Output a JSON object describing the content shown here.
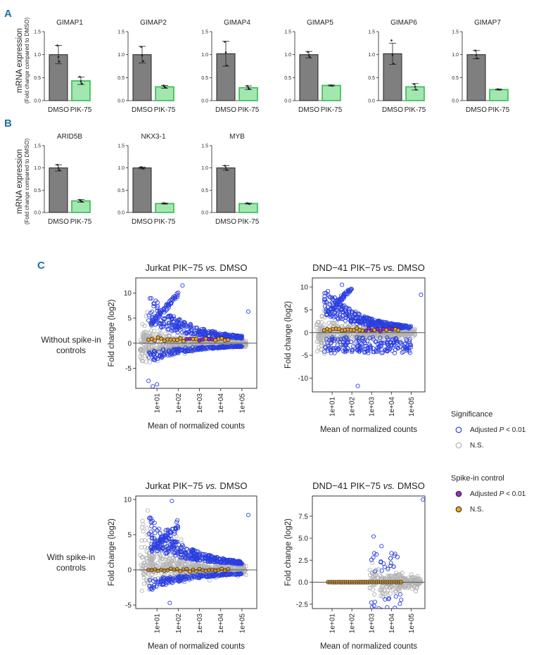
{
  "panels": {
    "a": "A",
    "b": "B",
    "c": "C"
  },
  "bar_ylabel": {
    "line1": "mRNA expression",
    "line2": "(Fold change compared to DMSO)"
  },
  "ma_xlabel": "Mean of normalized counts",
  "ma_ylabel": "Fold change (log2)",
  "row_labels": {
    "top": [
      "Without spike-in",
      "controls"
    ],
    "bottom": [
      "With spike-in",
      "controls"
    ]
  },
  "legend": {
    "significance_title": "Significance",
    "significance_items": [
      {
        "label_pre": "Adjusted ",
        "label_italic": "P",
        "label_post": " < 0.01",
        "stroke": "#2b3fe0",
        "fill": "none"
      },
      {
        "label_pre": "N.S.",
        "label_italic": "",
        "label_post": "",
        "stroke": "#b3b3b3",
        "fill": "none"
      }
    ],
    "spike_title": "Spike-in control",
    "spike_items": [
      {
        "label_pre": "Adjusted ",
        "label_italic": "P",
        "label_post": " < 0.01",
        "stroke": "#231f20",
        "fill": "#9b27c8"
      },
      {
        "label_pre": "N.S.",
        "label_italic": "",
        "label_post": "",
        "stroke": "#231f20",
        "fill": "#f0a21e"
      }
    ]
  },
  "colors": {
    "dmso": "#7f7f7f",
    "pik": "#a3e6b0",
    "pik_border": "#2fbf4f",
    "sig": "#2b3fe0",
    "ns": "#b3b3b3",
    "spike_sig": "#9b27c8",
    "spike_ns": "#f0a21e"
  },
  "chart_data": [
    {
      "type": "bar",
      "panel": "A",
      "title": "GIMAP1",
      "categories": [
        "DMSO",
        "PIK-75"
      ],
      "values": [
        1.0,
        0.43
      ],
      "errors": [
        0.2,
        0.08
      ],
      "points": [
        [
          1.2,
          0.95,
          0.85
        ],
        [
          0.52,
          0.42,
          0.37
        ]
      ],
      "yticks": [
        0.0,
        0.5,
        1.0,
        1.5
      ],
      "ylim": [
        0,
        1.5
      ]
    },
    {
      "type": "bar",
      "panel": "A",
      "title": "GIMAP2",
      "categories": [
        "DMSO",
        "PIK-75"
      ],
      "values": [
        1.0,
        0.3
      ],
      "errors": [
        0.18,
        0.03
      ],
      "points": [
        [
          1.17,
          0.98,
          0.86
        ],
        [
          0.33,
          0.3,
          0.28
        ]
      ],
      "yticks": [
        0.0,
        0.5,
        1.0,
        1.5
      ],
      "ylim": [
        0,
        1.5
      ]
    },
    {
      "type": "bar",
      "panel": "A",
      "title": "GIMAP4",
      "categories": [
        "DMSO",
        "PIK-75"
      ],
      "values": [
        1.02,
        0.28
      ],
      "errors": [
        0.27,
        0.04
      ],
      "points": [
        [
          1.28,
          1.05,
          0.76
        ],
        [
          0.32,
          0.28,
          0.25
        ]
      ],
      "yticks": [
        0.0,
        0.5,
        1.0,
        1.5
      ],
      "ylim": [
        0,
        1.5
      ]
    },
    {
      "type": "bar",
      "panel": "A",
      "title": "GIMAP5",
      "categories": [
        "DMSO",
        "PIK-75"
      ],
      "values": [
        1.0,
        0.33
      ],
      "errors": [
        0.07,
        0.01
      ],
      "points": [
        [
          1.06,
          0.99,
          0.95
        ],
        [
          0.33,
          0.33,
          0.32
        ]
      ],
      "yticks": [
        0.0,
        0.5,
        1.0,
        1.5
      ],
      "ylim": [
        0,
        1.5
      ]
    },
    {
      "type": "bar",
      "panel": "A",
      "title": "GIMAP6",
      "categories": [
        "DMSO",
        "PIK-75"
      ],
      "values": [
        1.02,
        0.3
      ],
      "errors": [
        0.23,
        0.07
      ],
      "points": [
        [
          1.31,
          0.99,
          0.8
        ],
        [
          0.36,
          0.3,
          0.24
        ]
      ],
      "yticks": [
        0.0,
        0.5,
        1.0,
        1.5
      ],
      "ylim": [
        0,
        1.5
      ]
    },
    {
      "type": "bar",
      "panel": "A",
      "title": "GIMAP7",
      "categories": [
        "DMSO",
        "PIK-75"
      ],
      "values": [
        1.0,
        0.24
      ],
      "errors": [
        0.09,
        0.01
      ],
      "points": [
        [
          1.09,
          0.99,
          0.92
        ],
        [
          0.25,
          0.24,
          0.24
        ]
      ],
      "yticks": [
        0.0,
        0.5,
        1.0,
        1.5
      ],
      "ylim": [
        0,
        1.5
      ]
    },
    {
      "type": "bar",
      "panel": "B",
      "title": "ARID5B",
      "categories": [
        "DMSO",
        "PIK-75"
      ],
      "values": [
        1.0,
        0.26
      ],
      "errors": [
        0.07,
        0.03
      ],
      "points": [
        [
          1.07,
          1.0,
          0.95
        ],
        [
          0.28,
          0.26,
          0.24
        ]
      ],
      "yticks": [
        0.0,
        0.5,
        1.0,
        1.5
      ],
      "ylim": [
        0,
        1.5
      ]
    },
    {
      "type": "bar",
      "panel": "B",
      "title": "NKX3-1",
      "categories": [
        "DMSO",
        "PIK-75"
      ],
      "values": [
        1.0,
        0.2
      ],
      "errors": [
        0.02,
        0.01
      ],
      "points": [
        [
          1.02,
          1.0,
          0.98
        ],
        [
          0.21,
          0.2,
          0.2
        ]
      ],
      "yticks": [
        0.0,
        0.5,
        1.0,
        1.5
      ],
      "ylim": [
        0,
        1.5
      ]
    },
    {
      "type": "bar",
      "panel": "B",
      "title": "MYB",
      "categories": [
        "DMSO",
        "PIK-75"
      ],
      "values": [
        1.0,
        0.2
      ],
      "errors": [
        0.05,
        0.01
      ],
      "points": [
        [
          1.05,
          1.0,
          0.95
        ],
        [
          0.21,
          0.2,
          0.19
        ]
      ],
      "yticks": [
        0.0,
        0.5,
        1.0,
        1.5
      ],
      "ylim": [
        0,
        1.5
      ]
    },
    {
      "type": "scatter",
      "panel": "C",
      "subtype": "MA plot",
      "title_pre": "Jurkat PIK−75 ",
      "title_italic": "vs.",
      "title_post": " DMSO",
      "xlabel": "Mean of normalized counts",
      "ylabel": "Fold change (log2)",
      "xticks": [
        "1e+01",
        "1e+02",
        "1e+03",
        "1e+04",
        "1e+05"
      ],
      "yticks": [
        -5,
        0,
        5,
        10
      ],
      "xlim_log10": [
        0,
        5.7
      ],
      "ylim": [
        -9,
        13
      ],
      "profile": "jurkat_no_spike",
      "seed": 11,
      "outliers": [
        [
          5.3,
          6.3
        ],
        [
          2.2,
          11.5
        ],
        [
          0.6,
          -7.5
        ],
        [
          0.8,
          -8.6
        ],
        [
          1.0,
          -8.2
        ]
      ]
    },
    {
      "type": "scatter",
      "panel": "C",
      "subtype": "MA plot",
      "title_pre": "DND−41 PIK−75 ",
      "title_italic": "vs.",
      "title_post": " DMSO",
      "xlabel": "Mean of normalized counts",
      "ylabel": "Fold change (log2)",
      "xticks": [
        "1e+01",
        "1e+02",
        "1e+03",
        "1e+04",
        "1e+05"
      ],
      "yticks": [
        -10,
        -5,
        0,
        5,
        10
      ],
      "xlim_log10": [
        0,
        5.7
      ],
      "ylim": [
        -13,
        12
      ],
      "profile": "dnd_no_spike",
      "seed": 23,
      "outliers": [
        [
          5.5,
          8.3
        ],
        [
          2.3,
          -11.7
        ],
        [
          1.5,
          10.5
        ]
      ]
    },
    {
      "type": "scatter",
      "panel": "C",
      "subtype": "MA plot",
      "title_pre": "Jurkat PIK−75 ",
      "title_italic": "vs.",
      "title_post": " DMSO",
      "xlabel": "Mean of normalized counts",
      "ylabel": "Fold change (log2)",
      "xticks": [
        "1e+01",
        "1e+02",
        "1e+03",
        "1e+04",
        "1e+05"
      ],
      "yticks": [
        -5,
        0,
        5,
        10
      ],
      "xlim_log10": [
        0,
        5.7
      ],
      "ylim": [
        -5.5,
        10.5
      ],
      "profile": "jurkat_spike",
      "seed": 37,
      "outliers": [
        [
          5.3,
          7.8
        ],
        [
          1.7,
          9.8
        ],
        [
          1.6,
          -4.7
        ]
      ]
    },
    {
      "type": "scatter",
      "panel": "C",
      "subtype": "MA plot",
      "title_pre": "DND−41 PIK−75 ",
      "title_italic": "vs.",
      "title_post": " DMSO",
      "xlabel": "Mean of normalized counts",
      "ylabel": "Fold change (log2)",
      "xticks": [
        "1e+01",
        "1e+02",
        "1e+03",
        "1e+04",
        "1e+05"
      ],
      "yticks": [
        -2.5,
        0.0,
        2.5,
        5.0,
        7.5
      ],
      "xlim_log10": [
        0,
        5.7
      ],
      "ylim": [
        -3,
        9.8
      ],
      "profile": "dnd_spike",
      "seed": 41,
      "outliers": [
        [
          5.6,
          9.4
        ],
        [
          3.1,
          5.2
        ],
        [
          3.5,
          4.1
        ]
      ]
    }
  ]
}
